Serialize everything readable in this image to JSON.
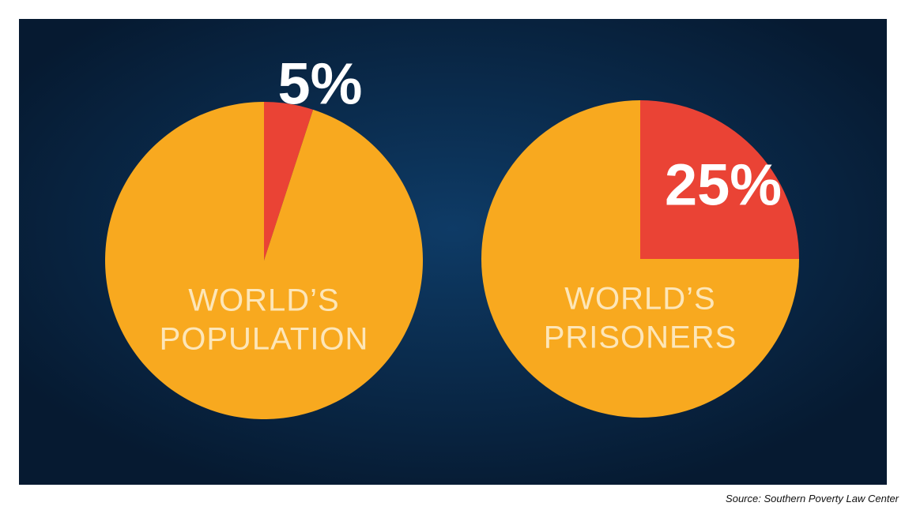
{
  "chart_data": [
    {
      "type": "pie",
      "title": [
        "WORLD’S",
        "POPULATION"
      ],
      "values": [
        5,
        95
      ],
      "value_labels": [
        "5%",
        null
      ],
      "colors": [
        "#ea4335",
        "#f8a91f"
      ]
    },
    {
      "type": "pie",
      "title": [
        "WORLD’S",
        "PRISONERS"
      ],
      "values": [
        25,
        75
      ],
      "value_labels": [
        "25%",
        null
      ],
      "colors": [
        "#ea4335",
        "#f8a91f"
      ]
    }
  ],
  "source": "Source: Southern Poverty Law Center"
}
